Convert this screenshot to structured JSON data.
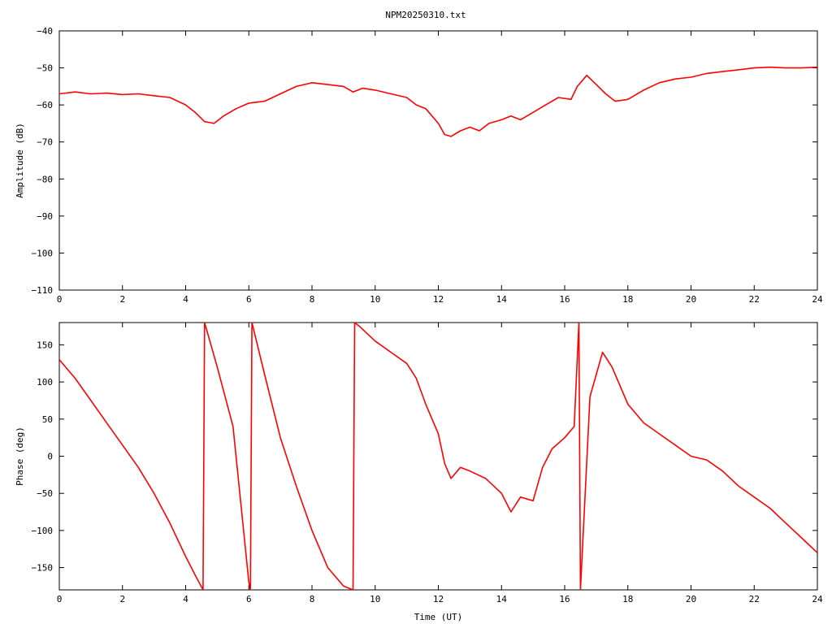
{
  "title": "NPM20250310.txt",
  "chart_data": [
    {
      "type": "line",
      "ylabel": "Amplitude (dB)",
      "xlabel": "",
      "xlim": [
        0,
        24
      ],
      "ylim": [
        -110,
        -40
      ],
      "x_ticks": [
        0,
        2,
        4,
        6,
        8,
        10,
        12,
        14,
        16,
        18,
        20,
        22,
        24
      ],
      "y_ticks": [
        -110,
        -100,
        -90,
        -80,
        -70,
        -60,
        -50,
        -40
      ],
      "color": "#ff0000",
      "grid": false,
      "series": [
        {
          "x": [
            0,
            0.5,
            1,
            1.5,
            2,
            2.5,
            3,
            3.5,
            4,
            4.3,
            4.6,
            4.9,
            5.2,
            5.6,
            6,
            6.5,
            7,
            7.5,
            8,
            8.5,
            9,
            9.3,
            9.6,
            10,
            10.5,
            11,
            11.3,
            11.6,
            12,
            12.2,
            12.4,
            12.7,
            13,
            13.3,
            13.6,
            14,
            14.3,
            14.6,
            15,
            15.4,
            15.8,
            16.2,
            16.4,
            16.7,
            17,
            17.3,
            17.6,
            18,
            18.5,
            19,
            19.5,
            20,
            20.5,
            21,
            21.5,
            22,
            22.5,
            23,
            23.5,
            24
          ],
          "y": [
            -57,
            -56.5,
            -57,
            -56.8,
            -57.2,
            -57,
            -57.5,
            -58,
            -60,
            -62,
            -64.5,
            -65,
            -63,
            -61,
            -59.5,
            -59,
            -57,
            -55,
            -54,
            -54.5,
            -55,
            -56.5,
            -55.5,
            -56,
            -57,
            -58,
            -60,
            -61,
            -65,
            -68,
            -68.5,
            -67,
            -66,
            -67,
            -65,
            -64,
            -63,
            -64,
            -62,
            -60,
            -58,
            -58.5,
            -55,
            -52,
            -54.5,
            -57,
            -59,
            -58.5,
            -56,
            -54,
            -53,
            -52.5,
            -51.5,
            -51,
            -50.5,
            -50,
            -49.8,
            -50,
            -50,
            -49.8
          ]
        }
      ]
    },
    {
      "type": "line",
      "ylabel": "Phase (deg)",
      "xlabel": "Time (UT)",
      "xlim": [
        0,
        24
      ],
      "ylim": [
        -180,
        180
      ],
      "x_ticks": [
        0,
        2,
        4,
        6,
        8,
        10,
        12,
        14,
        16,
        18,
        20,
        22,
        24
      ],
      "y_ticks": [
        -150,
        -100,
        -50,
        0,
        50,
        100,
        150
      ],
      "color": "#ff0000",
      "grid": false,
      "series": [
        {
          "x": [
            0,
            0.5,
            1,
            1.5,
            2,
            2.5,
            3,
            3.5,
            4,
            4.3,
            4.55,
            4.6,
            5,
            5.5,
            6,
            6.05,
            6.1,
            6.5,
            7,
            7.5,
            8,
            8.5,
            9,
            9.3,
            9.35,
            9.5,
            10,
            10.5,
            11,
            11.3,
            11.6,
            12,
            12.2,
            12.4,
            12.7,
            13,
            13.5,
            14,
            14.3,
            14.6,
            15,
            15.3,
            15.6,
            16,
            16.3,
            16.45,
            16.5,
            16.8,
            17.2,
            17.5,
            18,
            18.5,
            19,
            19.5,
            20,
            20.5,
            21,
            21.5,
            22,
            22.5,
            23,
            23.5,
            24
          ],
          "y": [
            130,
            105,
            75,
            45,
            15,
            -15,
            -50,
            -90,
            -135,
            -160,
            -180,
            180,
            120,
            40,
            -170,
            -180,
            180,
            110,
            25,
            -40,
            -100,
            -150,
            -175,
            -180,
            180,
            175,
            155,
            140,
            125,
            105,
            70,
            30,
            -10,
            -30,
            -15,
            -20,
            -30,
            -50,
            -75,
            -55,
            -60,
            -15,
            10,
            25,
            40,
            180,
            -180,
            80,
            140,
            120,
            70,
            45,
            30,
            15,
            0,
            -5,
            -20,
            -40,
            -55,
            -70,
            -90,
            -110,
            -130
          ]
        }
      ]
    }
  ]
}
